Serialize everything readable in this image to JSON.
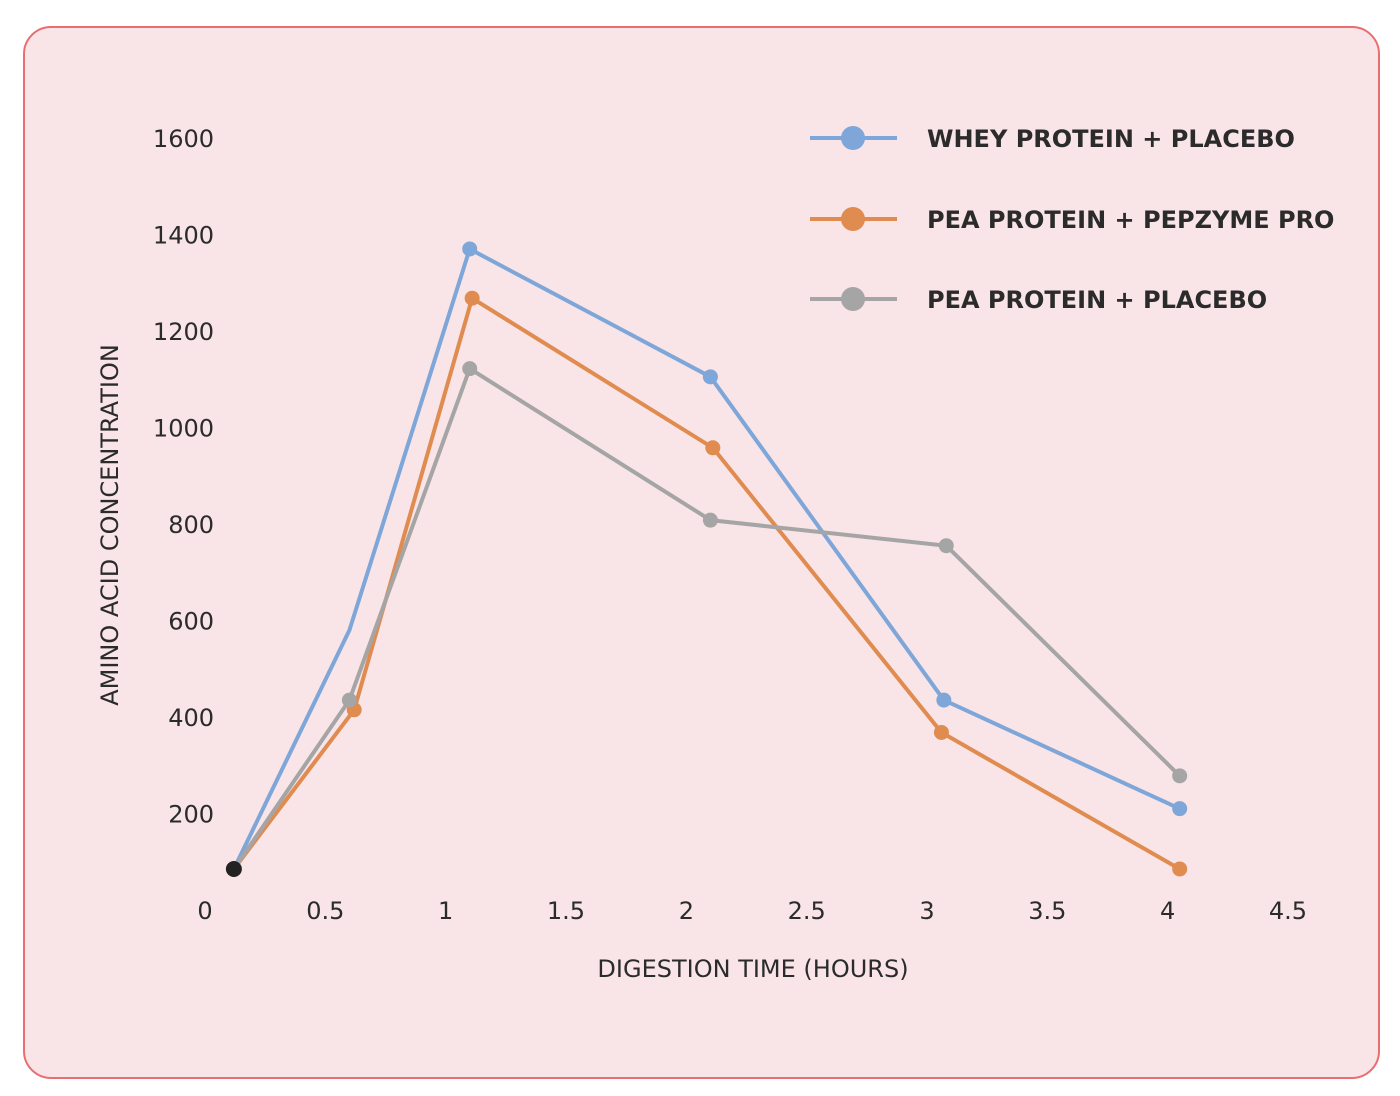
{
  "chart_data": {
    "type": "line",
    "title": "",
    "xlabel": "DIGESTION TIME (HOURS)",
    "ylabel": "AMINO ACID CONCENTRATION",
    "x_ticks": [
      "0",
      "0.5",
      "1",
      "1.5",
      "2",
      "2.5",
      "3",
      "3.5",
      "4",
      "4.5"
    ],
    "x_tick_values": [
      0,
      0.5,
      1,
      1.5,
      2,
      2.5,
      3,
      3.5,
      4,
      4.5
    ],
    "y_ticks": [
      "200",
      "400",
      "600",
      "800",
      "1000",
      "1200",
      "1400",
      "1600"
    ],
    "y_tick_values": [
      200,
      400,
      600,
      800,
      1000,
      1200,
      1400,
      1600
    ],
    "xlim": [
      0,
      4.5
    ],
    "ylim": [
      0,
      1600
    ],
    "grid": false,
    "legend_position": "top-right",
    "series": [
      {
        "name": "WHEY PROTEIN + PLACEBO",
        "color": "#7ea6d8",
        "x": [
          0.12,
          0.6,
          1.1,
          2.1,
          3.07,
          4.05
        ],
        "y": [
          85,
          580,
          1370,
          1105,
          435,
          210
        ],
        "markers": [
          true,
          false,
          true,
          true,
          true,
          true
        ]
      },
      {
        "name": "PEA PROTEIN + PEPZYME PRO",
        "color": "#e08b4f",
        "x": [
          0.12,
          0.62,
          1.11,
          2.11,
          3.06,
          4.05
        ],
        "y": [
          85,
          415,
          1268,
          958,
          368,
          85
        ],
        "markers": [
          true,
          true,
          true,
          true,
          true,
          true
        ]
      },
      {
        "name": "PEA PROTEIN + PLACEBO",
        "color": "#a5a5a5",
        "x": [
          0.12,
          0.6,
          1.1,
          2.1,
          3.08,
          4.05
        ],
        "y": [
          85,
          435,
          1122,
          808,
          755,
          278
        ],
        "markers": [
          true,
          true,
          true,
          true,
          true,
          true
        ]
      }
    ],
    "origin_point": {
      "x": 0.12,
      "y": 85,
      "color": "#222222"
    }
  }
}
